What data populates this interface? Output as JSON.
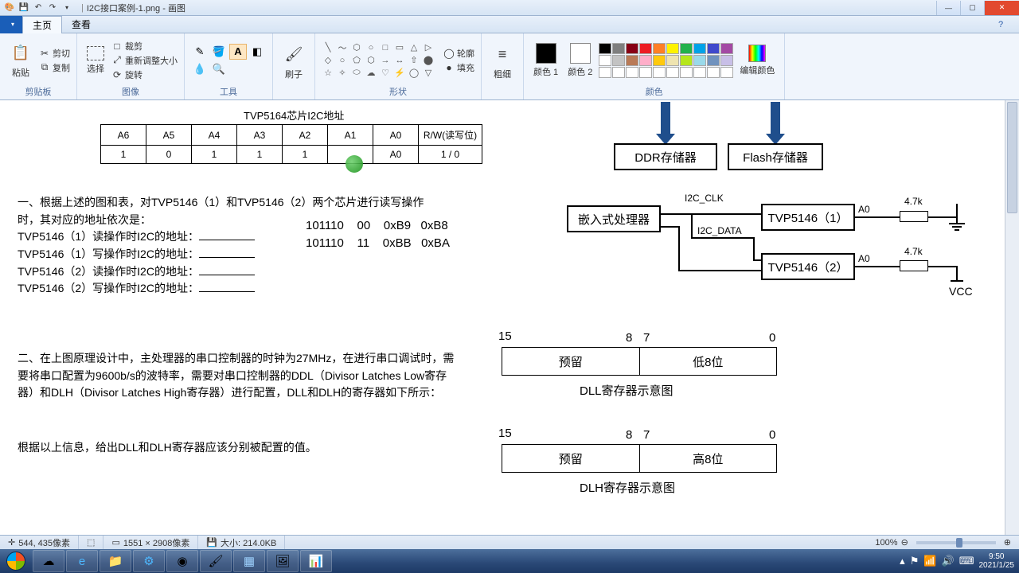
{
  "titlebar": {
    "filename": "I2C接口案例-1.png - 画图"
  },
  "tabs": {
    "home": "主页",
    "view": "查看"
  },
  "ribbon": {
    "clipboard": {
      "label": "剪贴板",
      "paste": "粘贴",
      "cut": "剪切",
      "copy": "复制"
    },
    "image": {
      "label": "图像",
      "select": "选择",
      "crop": "裁剪",
      "resize": "重新调整大小",
      "rotate": "旋转"
    },
    "tools": {
      "label": "工具"
    },
    "brush": {
      "label": "刷子"
    },
    "shapes": {
      "label": "形状",
      "outline": "轮廓",
      "fill": "填充"
    },
    "size": {
      "label": "粗细"
    },
    "colors": {
      "label": "颜色",
      "c1": "颜色 1",
      "c2": "颜色 2",
      "edit": "编辑颜色"
    }
  },
  "palette_row1": [
    "#000000",
    "#7f7f7f",
    "#880015",
    "#ed1c24",
    "#ff7f27",
    "#fff200",
    "#22b14c",
    "#00a2e8",
    "#3f48cc",
    "#a349a4"
  ],
  "palette_row2": [
    "#ffffff",
    "#c3c3c3",
    "#b97a57",
    "#ffaec9",
    "#ffc90e",
    "#efe4b0",
    "#b5e61d",
    "#99d9ea",
    "#7092be",
    "#c8bfe7"
  ],
  "palette_row3": [
    "#ffffff",
    "#ffffff",
    "#ffffff",
    "#ffffff",
    "#ffffff",
    "#ffffff",
    "#ffffff",
    "#ffffff",
    "#ffffff",
    "#ffffff"
  ],
  "doc": {
    "tableTitle": "TVP5164芯片I2C地址",
    "headers": [
      "A6",
      "A5",
      "A4",
      "A3",
      "A2",
      "A1",
      "A0",
      "R/W(读写位)"
    ],
    "row": [
      "1",
      "0",
      "1",
      "1",
      "1",
      "",
      "A0",
      "1 / 0"
    ],
    "q1": {
      "l1": "一、根据上述的图和表，对TVP5146（1）和TVP5146（2）两个芯片进行读写操作",
      "l2": "时，其对应的地址依次是：",
      "a": "TVP5146（1）读操作时I2C的地址：",
      "b": "TVP5146（1）写操作时I2C的地址：",
      "c": "TVP5146（2）读操作时I2C的地址：",
      "d": "TVP5146（2）写操作时I2C的地址：",
      "calc1": "101110    00    0xB9   0xB8",
      "calc2": "101110    11    0xBB   0xBA"
    },
    "q2": {
      "p1": "二、在上图原理设计中，主处理器的串口控制器的时钟为27MHz，在进行串口调试时，需要将串口配置为9600b/s的波特率，需要对串口控制器的DDL（Divisor Latches Low寄存器）和DLH（Divisor Latches High寄存器）进行配置，DLL和DLH的寄存器如下所示：",
      "p2": "根据以上信息，给出DLL和DLH寄存器应该分别被配置的值。"
    },
    "diagram": {
      "ddr": "DDR存储器",
      "flash": "Flash存储器",
      "cpu": "嵌入式处理器",
      "tvp1": "TVP5146（1）",
      "tvp2": "TVP5146（2）",
      "clk": "I2C_CLK",
      "data": "I2C_DATA",
      "a0": "A0",
      "r47": "4.7k",
      "vcc": "VCC"
    },
    "reg": {
      "n15": "15",
      "n8": "8",
      "n7": "7",
      "n0": "0",
      "reserve": "预留",
      "low8": "低8位",
      "high8": "高8位",
      "dll_caption": "DLL寄存器示意图",
      "dlh_caption": "DLH寄存器示意图"
    }
  },
  "status": {
    "pos": "544, 435像素",
    "dim": "1551 × 2908像素",
    "size": "大小: 214.0KB",
    "zoom": "100%"
  },
  "taskbar": {
    "time": "9:50",
    "date": "2021/1/25"
  }
}
